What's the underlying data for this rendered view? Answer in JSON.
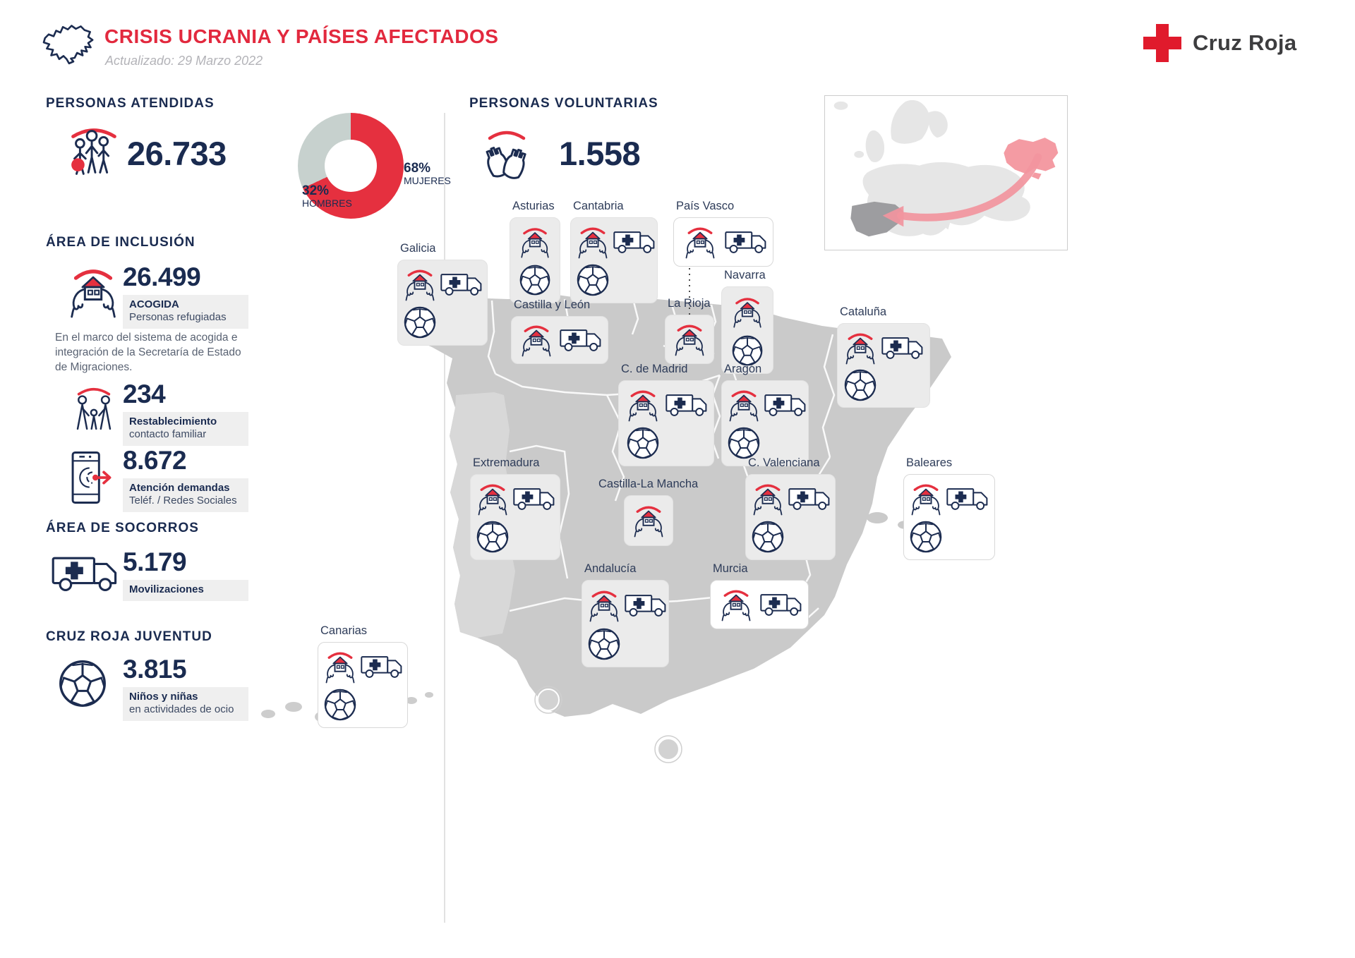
{
  "header": {
    "title": "CRISIS UCRANIA Y PAÍSES AFECTADOS",
    "updated": "Actualizado: 29 Marzo 2022",
    "logo_text": "Cruz Roja"
  },
  "colors": {
    "accent_red": "#e5303f",
    "navy": "#1a2b50",
    "donut_gray": "#c7d1ce",
    "arrow_pink": "#f2959e"
  },
  "atendidas": {
    "heading": "PERSONAS ATENDIDAS",
    "value": "26.733",
    "icon": "people-group-icon",
    "chart": {
      "men_pct": "32%",
      "men_label": "HOMBRES",
      "women_pct": "68%",
      "women_label": "MUJERES"
    }
  },
  "chart_data": {
    "type": "pie",
    "slices": [
      {
        "label": "MUJERES",
        "value": 68,
        "color": "#e5303f"
      },
      {
        "label": "HOMBRES",
        "value": 32,
        "color": "#c7d1ce"
      }
    ]
  },
  "voluntarias": {
    "heading": "PERSONAS VOLUNTARIAS",
    "value": "1.558",
    "icon": "open-hands-icon"
  },
  "inclusion": {
    "heading": "ÁREA DE INCLUSIÓN",
    "items": [
      {
        "value": "26.499",
        "label_bold": "ACOGIDA",
        "label": "Personas refugiadas",
        "icon": "acogida"
      },
      {
        "value": "234",
        "label_bold": "Restablecimiento",
        "label": "contacto familiar",
        "icon": "family"
      },
      {
        "value": "8.672",
        "label_bold": "Atención demandas",
        "label": "Teléf. / Redes Sociales",
        "icon": "phone"
      }
    ],
    "note": "En el marco del sistema de acogida e integración de la Secretaría de Estado de Migraciones."
  },
  "socorros": {
    "heading": "ÁREA DE SOCORROS",
    "value": "5.179",
    "label_bold": "Movilizaciones",
    "icon": "ambulance"
  },
  "juventud": {
    "heading": "CRUZ ROJA JUVENTUD",
    "value": "3.815",
    "label_bold": "Niños y niñas",
    "label": "en actividades de ocio",
    "icon": "soccer"
  },
  "map": {
    "regions": [
      {
        "id": "galicia",
        "name": "Galicia",
        "icons": [
          "acogida",
          "ambulance",
          "soccer"
        ]
      },
      {
        "id": "asturias",
        "name": "Asturias",
        "icons": [
          "acogida",
          "soccer"
        ]
      },
      {
        "id": "cantabria",
        "name": "Cantabria",
        "icons": [
          "acogida",
          "ambulance",
          "soccer"
        ]
      },
      {
        "id": "pais_vasco",
        "name": "País Vasco",
        "icons": [
          "acogida",
          "ambulance"
        ]
      },
      {
        "id": "navarra",
        "name": "Navarra",
        "icons": [
          "acogida",
          "soccer"
        ]
      },
      {
        "id": "la_rioja",
        "name": "La Rioja",
        "icons": [
          "acogida"
        ]
      },
      {
        "id": "castilla_leon",
        "name": "Castilla y León",
        "icons": [
          "acogida",
          "ambulance"
        ]
      },
      {
        "id": "cataluna",
        "name": "Cataluña",
        "icons": [
          "acogida",
          "ambulance",
          "soccer"
        ]
      },
      {
        "id": "madrid",
        "name": "C. de Madrid",
        "icons": [
          "acogida",
          "ambulance",
          "soccer"
        ]
      },
      {
        "id": "aragon",
        "name": "Aragón",
        "icons": [
          "acogida",
          "ambulance",
          "soccer"
        ]
      },
      {
        "id": "extremadura",
        "name": "Extremadura",
        "icons": [
          "acogida",
          "ambulance",
          "soccer"
        ]
      },
      {
        "id": "castilla_mancha",
        "name": "Castilla-La Mancha",
        "icons": [
          "acogida"
        ]
      },
      {
        "id": "valenciana",
        "name": "C. Valenciana",
        "icons": [
          "acogida",
          "ambulance",
          "soccer"
        ]
      },
      {
        "id": "baleares",
        "name": "Baleares",
        "icons": [
          "acogida",
          "ambulance",
          "soccer"
        ]
      },
      {
        "id": "andalucia",
        "name": "Andalucía",
        "icons": [
          "acogida",
          "ambulance",
          "soccer"
        ]
      },
      {
        "id": "murcia",
        "name": "Murcia",
        "icons": [
          "acogida",
          "ambulance"
        ]
      },
      {
        "id": "canarias",
        "name": "Canarias",
        "icons": [
          "acogida",
          "ambulance",
          "soccer"
        ]
      }
    ]
  }
}
